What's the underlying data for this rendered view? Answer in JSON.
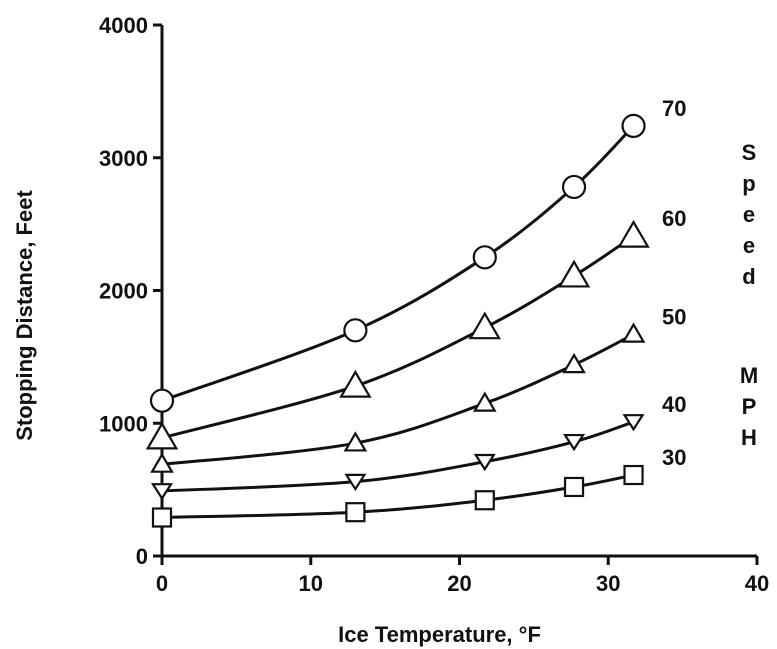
{
  "chart_data": {
    "type": "line",
    "xlabel": "Ice Temperature, °F",
    "ylabel": "Stopping Distance, Feet",
    "xlim": [
      0,
      40
    ],
    "ylim": [
      0,
      4000
    ],
    "x_ticks": [
      0,
      10,
      20,
      30,
      40
    ],
    "y_ticks": [
      0,
      1000,
      2000,
      3000,
      4000
    ],
    "x_tick_labels": [
      "0",
      "10",
      "20",
      "30",
      "40"
    ],
    "y_tick_labels": [
      "0",
      "1000",
      "2000",
      "3000",
      "4000"
    ],
    "grid": false,
    "legend_title_letters": [
      "S",
      "p",
      "e",
      "e",
      "d",
      "M",
      "P",
      "H"
    ],
    "series": [
      {
        "name": "70",
        "marker": "circle",
        "x": [
          0,
          13,
          21.7,
          27.7,
          31.7
        ],
        "y": [
          1170,
          1700,
          2250,
          2780,
          3240
        ]
      },
      {
        "name": "60",
        "marker": "triangle-up",
        "x": [
          0,
          13,
          21.7,
          27.7,
          31.7
        ],
        "y": [
          890,
          1280,
          1720,
          2110,
          2410
        ]
      },
      {
        "name": "50",
        "marker": "triangle-up",
        "x": [
          0,
          13,
          21.7,
          27.7,
          31.7
        ],
        "y": [
          690,
          850,
          1150,
          1440,
          1670
        ]
      },
      {
        "name": "40",
        "marker": "triangle-down",
        "x": [
          0,
          13,
          21.7,
          27.7,
          31.7
        ],
        "y": [
          490,
          560,
          710,
          860,
          1010
        ]
      },
      {
        "name": "30",
        "marker": "square",
        "x": [
          0,
          13,
          21.7,
          27.7,
          31.7
        ],
        "y": [
          290,
          330,
          420,
          520,
          610
        ]
      }
    ]
  }
}
